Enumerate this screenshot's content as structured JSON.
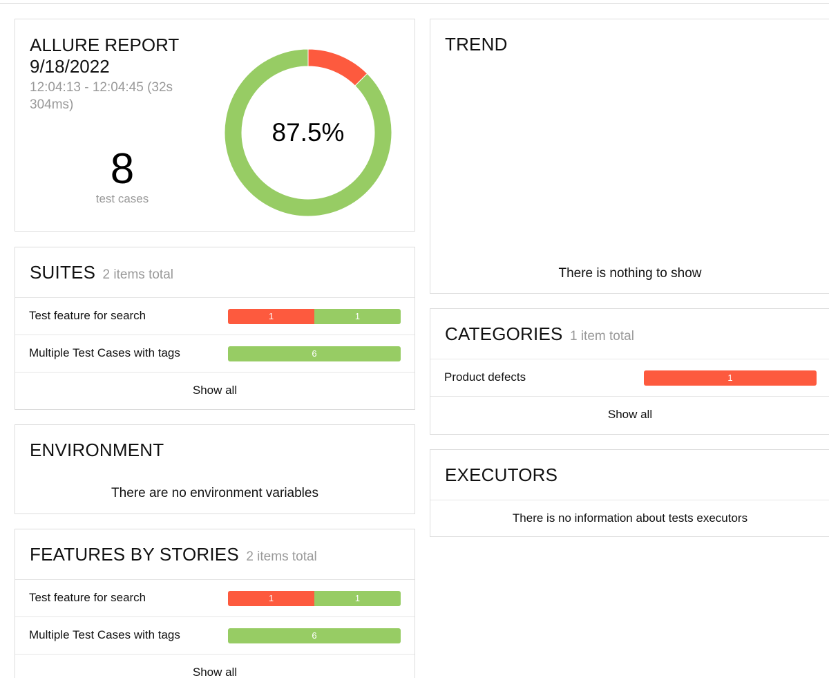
{
  "summary": {
    "title_line1": "ALLURE REPORT",
    "title_line2": "9/18/2022",
    "time_line1": "12:04:13 - 12:04:45 (32s",
    "time_line2": "304ms)",
    "count": "8",
    "count_label": "test cases",
    "success_rate": "87.5%",
    "chart_data": {
      "type": "pie",
      "categories": [
        "failed",
        "passed"
      ],
      "values": [
        1,
        7
      ],
      "colors": [
        "#fd5a3e",
        "#97cc64"
      ]
    }
  },
  "suites": {
    "title": "SUITES",
    "count": "2 items total",
    "rows": [
      {
        "label": "Test feature for search",
        "failed": "1",
        "passed": "1"
      },
      {
        "label": "Multiple Test Cases with tags",
        "passed": "6"
      }
    ],
    "show_all": "Show all"
  },
  "environment": {
    "title": "ENVIRONMENT",
    "message": "There are no environment variables"
  },
  "features": {
    "title": "FEATURES BY STORIES",
    "count": "2 items total",
    "rows": [
      {
        "label": "Test feature for search",
        "failed": "1",
        "passed": "1"
      },
      {
        "label": "Multiple Test Cases with tags",
        "passed": "6"
      }
    ],
    "show_all": "Show all"
  },
  "trend": {
    "title": "TREND",
    "message": "There is nothing to show"
  },
  "categories": {
    "title": "CATEGORIES",
    "count": "1 item total",
    "rows": [
      {
        "label": "Product defects",
        "failed": "1"
      }
    ],
    "show_all": "Show all"
  },
  "executors": {
    "title": "EXECUTORS",
    "message": "There is no information about tests executors"
  },
  "colors": {
    "failed": "#fd5a3e",
    "passed": "#97cc64"
  }
}
